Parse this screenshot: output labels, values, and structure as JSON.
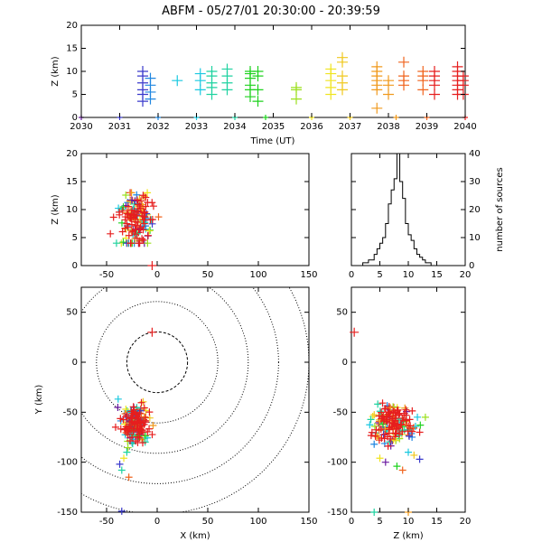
{
  "title": "ABFM - 05/27/01 20:30:00 - 20:39:59",
  "chart_data": [
    {
      "id": "time-height",
      "type": "scatter",
      "xlabel": "Time (UT)",
      "ylabel": "Z (km)",
      "xlim": [
        2030,
        2040
      ],
      "ylim": [
        0,
        20
      ],
      "xticks": [
        "2030",
        "2031",
        "2032",
        "2033",
        "2034",
        "2035",
        "2036",
        "2037",
        "2038",
        "2039",
        "2040"
      ],
      "yticks": [
        "0",
        "5",
        "10",
        "15",
        "20"
      ],
      "points": [
        {
          "t": 2031.6,
          "z": [
            3.5,
            5,
            6,
            7.5,
            9,
            10
          ]
        },
        {
          "t": 2031.8,
          "z": [
            4,
            5.5,
            7,
            8.5
          ]
        },
        {
          "t": 2032.5,
          "z": [
            8
          ]
        },
        {
          "t": 2033.1,
          "z": [
            6,
            8,
            9.5
          ]
        },
        {
          "t": 2033.4,
          "z": [
            5,
            6.5,
            7.5,
            9,
            10
          ]
        },
        {
          "t": 2033.8,
          "z": [
            6,
            7.5,
            9,
            10.5
          ]
        },
        {
          "t": 2034.4,
          "z": [
            4.5,
            6,
            7,
            8.5,
            9.5,
            10
          ]
        },
        {
          "t": 2034.6,
          "z": [
            3.5,
            6,
            9,
            10
          ]
        },
        {
          "t": 2035.6,
          "z": [
            4,
            6,
            6.5
          ]
        },
        {
          "t": 2036.5,
          "z": [
            5,
            6.5,
            8,
            9.5,
            10.5
          ]
        },
        {
          "t": 2036.8,
          "z": [
            6,
            7.5,
            9,
            12,
            13
          ]
        },
        {
          "t": 2037.7,
          "z": [
            2,
            6,
            7,
            8,
            9,
            10,
            11
          ]
        },
        {
          "t": 2038.0,
          "z": [
            5,
            7,
            8
          ]
        },
        {
          "t": 2038.4,
          "z": [
            7,
            8,
            9,
            12
          ]
        },
        {
          "t": 2038.9,
          "z": [
            6,
            8,
            9,
            10
          ]
        },
        {
          "t": 2039.2,
          "z": [
            5,
            7,
            8,
            9,
            10
          ]
        },
        {
          "t": 2039.8,
          "z": [
            5,
            6,
            7,
            8,
            9,
            10,
            11
          ]
        },
        {
          "t": 2039.95,
          "z": [
            5,
            7,
            8,
            9
          ]
        }
      ],
      "ground_points": [
        2030.0,
        2031.0,
        2032.0,
        2033.0,
        2034.0,
        2034.8,
        2036.0,
        2037.0,
        2038.2,
        2039.0,
        2040.0
      ]
    },
    {
      "id": "x-z",
      "type": "scatter",
      "xlabel": "",
      "ylabel": "Z (km)",
      "xlim": [
        -75,
        150
      ],
      "ylim": [
        0,
        20
      ],
      "xticks": [
        "-50",
        "0",
        "50",
        "100",
        "150"
      ],
      "yticks": [
        "0",
        "5",
        "10",
        "15",
        "20"
      ],
      "cluster": {
        "x_center": -22,
        "x_spread": 8,
        "z_center": 8,
        "z_spread": 2.5
      },
      "station_point": {
        "x": -5,
        "z": 0
      }
    },
    {
      "id": "altitude-histogram",
      "type": "bar",
      "xlabel": "",
      "ylabel": "number of sources",
      "xlim": [
        0,
        20
      ],
      "ylim": [
        0,
        40
      ],
      "xticks": [
        "0",
        "5",
        "10",
        "15",
        "20"
      ],
      "yticks": [
        "0",
        "10",
        "20",
        "30",
        "40"
      ],
      "bin_width": 0.5,
      "bin_starts": [
        2,
        2.5,
        3,
        3.5,
        4,
        4.5,
        5,
        5.5,
        6,
        6.5,
        7,
        7.5,
        8,
        8.5,
        9,
        9.5,
        10,
        10.5,
        11,
        11.5,
        12,
        12.5,
        13,
        13.5
      ],
      "counts": [
        1,
        1,
        2,
        2,
        4,
        6,
        8,
        10,
        15,
        22,
        27,
        31,
        40,
        30,
        24,
        15,
        11,
        9,
        6,
        4,
        3,
        2,
        1,
        1
      ]
    },
    {
      "id": "plan-view",
      "type": "scatter",
      "xlabel": "X (km)",
      "ylabel": "Y (km)",
      "xlim": [
        -75,
        150
      ],
      "ylim": [
        -150,
        75
      ],
      "xticks": [
        "-50",
        "0",
        "50",
        "100",
        "150"
      ],
      "yticks": [
        "-150",
        "-100",
        "-50",
        "0",
        "50"
      ],
      "range_rings_km": [
        30,
        60,
        90,
        120,
        150
      ],
      "cluster": {
        "x_center": -22,
        "x_spread": 7,
        "y_center": -62,
        "y_spread": 9
      },
      "outliers": [
        {
          "x": -37,
          "y": -102
        },
        {
          "x": -35,
          "y": -108
        },
        {
          "x": -33,
          "y": -96
        },
        {
          "x": -28,
          "y": -115
        },
        {
          "x": -35,
          "y": -149
        },
        {
          "x": -30,
          "y": -90
        }
      ],
      "station_point": {
        "x": -5,
        "y": 30
      }
    },
    {
      "id": "z-y",
      "type": "scatter",
      "xlabel": "Z (km)",
      "ylabel": "",
      "xlim": [
        0,
        20
      ],
      "ylim": [
        -150,
        75
      ],
      "xticks": [
        "0",
        "5",
        "10",
        "15",
        "20"
      ],
      "yticks": [
        "-150",
        "-100",
        "-50",
        "0",
        "50"
      ],
      "cluster": {
        "z_center": 7.5,
        "z_spread": 1.8,
        "y_center": -62,
        "y_spread": 9
      },
      "outliers": [
        {
          "z": 4,
          "y": -82
        },
        {
          "z": 5,
          "y": -96
        },
        {
          "z": 6,
          "y": -100
        },
        {
          "z": 8,
          "y": -104
        },
        {
          "z": 9,
          "y": -108
        },
        {
          "z": 10,
          "y": -90
        },
        {
          "z": 11,
          "y": -93
        },
        {
          "z": 12,
          "y": -97
        },
        {
          "z": 13,
          "y": -55
        },
        {
          "z": 12,
          "y": -70
        },
        {
          "z": 4,
          "y": -150
        },
        {
          "z": 10,
          "y": -150
        }
      ],
      "station_point": {
        "z": 0.5,
        "y": 30
      }
    }
  ],
  "colors": {
    "palette": [
      "#6a1aa0",
      "#3a3acc",
      "#1f86e0",
      "#19c8e0",
      "#1ed2a0",
      "#1ed21e",
      "#9be01e",
      "#f0e41e",
      "#f0c81e",
      "#f09a1e",
      "#f0641e",
      "#e61e1e"
    ],
    "station_marker": "#e61e1e"
  }
}
